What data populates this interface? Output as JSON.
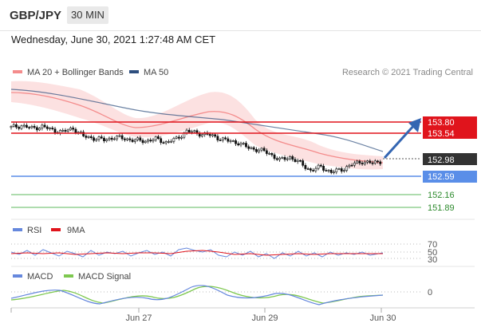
{
  "header": {
    "symbol": "GBP/JPY",
    "timeframe": "30 MIN"
  },
  "datetime": "Wednesday, June 30, 2021 1:27:48 AM CET",
  "legend": {
    "bollinger": "MA 20 + Bollinger Bands",
    "ma50": "MA 50",
    "credit": "Research © 2021 Trading Central"
  },
  "colors": {
    "bollinger": "#f48c8c",
    "band_fill": "#fbdcdc",
    "ma50": "#2d4e7e",
    "resistance": "#e0141c",
    "support_blue": "#5a8ee8",
    "support_green": "#5cb85c",
    "current": "#333333",
    "arrow": "#3466b2",
    "rsi": "#6688dd",
    "rsi_ma": "#e0141c",
    "macd": "#6688dd",
    "macd_signal": "#7ec850"
  },
  "levels": {
    "r1": "153.80",
    "r2": "153.54",
    "current": "152.98",
    "s1": "152.59",
    "s2": "152.16",
    "s3": "151.89"
  },
  "rsi_panel": {
    "rsi_label": "RSI",
    "ma_label": "9MA",
    "level_70": "70",
    "level_50": "50",
    "level_30": "30"
  },
  "macd_panel": {
    "macd_label": "MACD",
    "signal_label": "MACD Signal",
    "zero": "0"
  },
  "xaxis": {
    "labels": [
      "Jun 27",
      "Jun 29",
      "Jun 30"
    ]
  },
  "chart_data": {
    "type": "candlestick",
    "y_levels": [
      153.8,
      153.54,
      152.98,
      152.59,
      152.16,
      151.89
    ],
    "close_path": [
      [
        0,
        153.68
      ],
      [
        4,
        153.72
      ],
      [
        8,
        153.66
      ],
      [
        12,
        153.7
      ],
      [
        16,
        153.62
      ],
      [
        20,
        153.58
      ],
      [
        24,
        153.66
      ],
      [
        28,
        153.48
      ],
      [
        32,
        153.44
      ],
      [
        36,
        153.4
      ],
      [
        40,
        153.46
      ],
      [
        44,
        153.43
      ],
      [
        48,
        153.39
      ],
      [
        52,
        153.38
      ],
      [
        56,
        153.42
      ],
      [
        60,
        153.35
      ],
      [
        64,
        153.42
      ],
      [
        68,
        153.6
      ],
      [
        72,
        153.55
      ],
      [
        76,
        153.52
      ],
      [
        80,
        153.45
      ],
      [
        84,
        153.38
      ],
      [
        88,
        153.34
      ],
      [
        92,
        153.22
      ],
      [
        96,
        153.18
      ],
      [
        100,
        153.1
      ],
      [
        104,
        152.95
      ],
      [
        108,
        153.02
      ],
      [
        112,
        152.88
      ],
      [
        116,
        152.72
      ],
      [
        120,
        152.8
      ],
      [
        124,
        152.68
      ],
      [
        128,
        152.74
      ],
      [
        132,
        152.85
      ],
      [
        136,
        152.92
      ],
      [
        140,
        152.88
      ],
      [
        144,
        152.94
      ]
    ]
  }
}
